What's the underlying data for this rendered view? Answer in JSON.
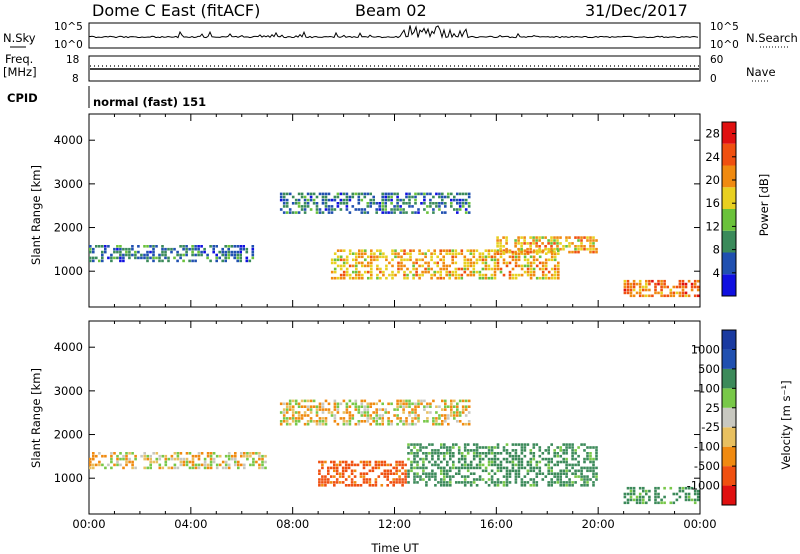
{
  "header": {
    "site": "Dome C East (fitACF)",
    "beam": "Beam 02",
    "date": "31/Dec/2017"
  },
  "strip_labels": {
    "nsky": "N.Sky",
    "freq_line1": "Freq.",
    "freq_line2": "[MHz]",
    "cpid": "CPID",
    "nsearch": "N.Search",
    "nave": "Nave",
    "cpid_value": "normal (fast) 151"
  },
  "strip_ticks": {
    "nsky_left": [
      "10^5",
      "10^0"
    ],
    "nsky_right": [
      "10^5",
      "10^0"
    ],
    "freq_left": [
      "18",
      "8"
    ],
    "freq_right": [
      "60",
      "0"
    ]
  },
  "panels": {
    "power": {
      "ylabel": "Slant Range [km]",
      "cbar_label": "Power [dB]"
    },
    "velocity": {
      "ylabel": "Slant Range [km]",
      "cbar_label": "Velocity [m s⁻¹]"
    }
  },
  "x_axis": {
    "label": "Time UT",
    "ticks": [
      "00:00",
      "04:00",
      "08:00",
      "12:00",
      "16:00",
      "20:00",
      "00:00"
    ]
  },
  "colors": {
    "power_scale": [
      "#1010e0",
      "#2050b0",
      "#3a8a5a",
      "#6ac23a",
      "#e8d020",
      "#f08a10",
      "#f05010",
      "#e01010"
    ],
    "velocity_scale": [
      "#e01010",
      "#f05010",
      "#f08a10",
      "#e8c060",
      "#c8c8c0",
      "#78c848",
      "#3c8a5a",
      "#2050b0",
      "#1a3aa0"
    ]
  },
  "chart_data": [
    {
      "type": "heatmap",
      "title": "Dome C East (fitACF) Beam 02 31/Dec/2017",
      "xlabel": "Time UT",
      "ylabel": "Slant Range [km]",
      "xlim": [
        0,
        24
      ],
      "ylim": [
        180,
        4600
      ],
      "yticks": [
        1000,
        2000,
        3000,
        4000
      ],
      "colorbar": {
        "label": "Power [dB]",
        "ticks": [
          4,
          8,
          12,
          16,
          20,
          24,
          28
        ],
        "range": [
          0,
          30
        ]
      },
      "features": [
        {
          "time_range": [
            0.0,
            6.5
          ],
          "range_km": [
            1200,
            1600
          ],
          "power_db": 8
        },
        {
          "time_range": [
            7.5,
            15.0
          ],
          "range_km": [
            2300,
            2800
          ],
          "power_db": 8
        },
        {
          "time_range": [
            9.5,
            18.5
          ],
          "range_km": [
            800,
            1500
          ],
          "power_db": 20
        },
        {
          "time_range": [
            16.0,
            20.0
          ],
          "range_km": [
            1400,
            1800
          ],
          "power_db": 20
        },
        {
          "time_range": [
            21.0,
            24.0
          ],
          "range_km": [
            400,
            800
          ],
          "power_db": 24
        }
      ]
    },
    {
      "type": "heatmap",
      "xlabel": "Time UT",
      "ylabel": "Slant Range [km]",
      "xlim": [
        0,
        24
      ],
      "ylim": [
        180,
        4600
      ],
      "yticks": [
        1000,
        2000,
        3000,
        4000
      ],
      "colorbar": {
        "label": "Velocity [m s⁻¹]",
        "ticks": [
          1000,
          500,
          100,
          25,
          -25,
          -100,
          -500,
          -1000
        ]
      },
      "features": [
        {
          "time_range": [
            0.0,
            7.0
          ],
          "range_km": [
            1200,
            1600
          ],
          "velocity_ms": 0
        },
        {
          "time_range": [
            7.5,
            15.0
          ],
          "range_km": [
            2200,
            2800
          ],
          "velocity_ms": 0
        },
        {
          "time_range": [
            9.0,
            12.5
          ],
          "range_km": [
            800,
            1400
          ],
          "velocity_ms": -150
        },
        {
          "time_range": [
            12.5,
            20.0
          ],
          "range_km": [
            800,
            1800
          ],
          "velocity_ms": 150
        },
        {
          "time_range": [
            21.0,
            24.0
          ],
          "range_km": [
            400,
            800
          ],
          "velocity_ms": 150
        }
      ]
    }
  ]
}
